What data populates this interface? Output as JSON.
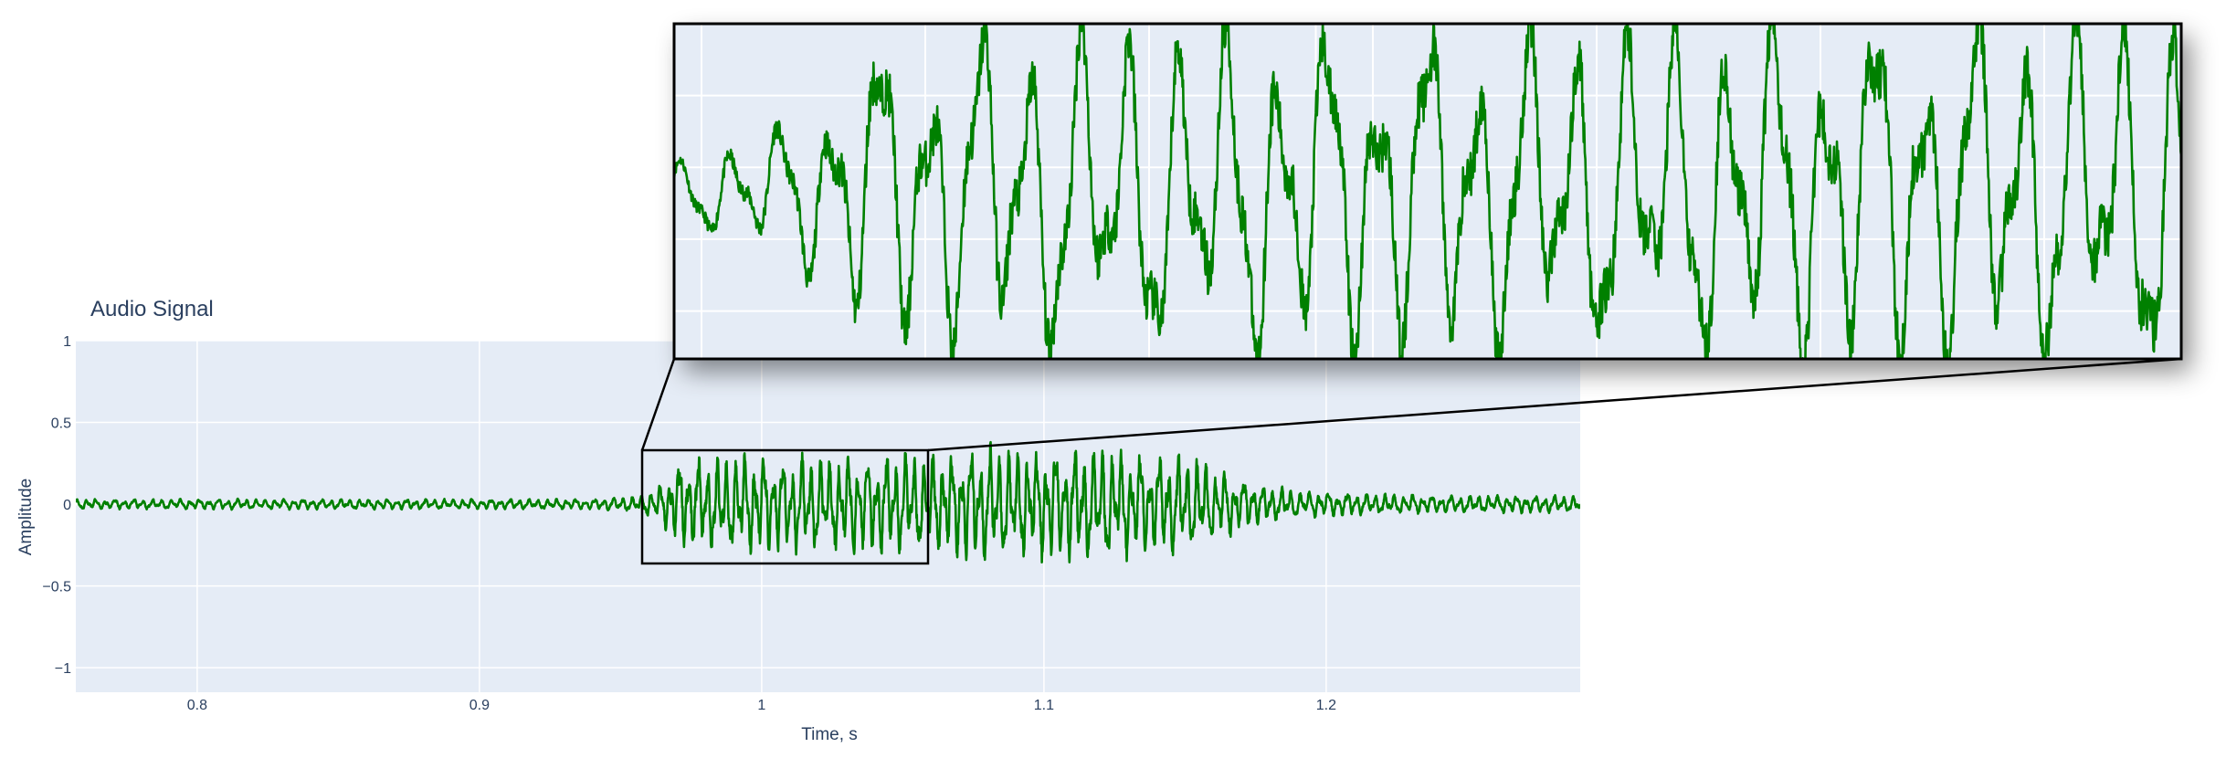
{
  "chart_data": {
    "type": "line",
    "title": "Audio Signal",
    "xlabel": "Time, s",
    "ylabel": "Amplitude",
    "xlim": [
      0.757,
      1.29
    ],
    "ylim": [
      -1.15,
      1.0
    ],
    "x_ticks": [
      0.8,
      0.9,
      1,
      1.1,
      1.2
    ],
    "x_tick_labels": [
      "0.8",
      "0.9",
      "1",
      "1.1",
      "1.2"
    ],
    "y_ticks": [
      1,
      0.5,
      0,
      -0.5,
      -1
    ],
    "y_tick_labels": [
      "1",
      "0.5",
      "0",
      "−0.5",
      "−1"
    ],
    "grid": true,
    "legend": "none",
    "colors": {
      "line": "#008000",
      "plot_bg": "#e5ecf6",
      "grid": "#ffffff",
      "text": "#2a3f5f",
      "frame": "#000000"
    },
    "series": [
      {
        "envelope": [
          [
            0.757,
            0.03
          ],
          [
            0.8,
            0.03
          ],
          [
            0.9,
            0.03
          ],
          [
            0.94,
            0.03
          ],
          [
            0.957,
            0.05
          ],
          [
            0.965,
            0.12
          ],
          [
            0.97,
            0.25
          ],
          [
            0.98,
            0.28
          ],
          [
            1.0,
            0.28
          ],
          [
            1.02,
            0.28
          ],
          [
            1.04,
            0.3
          ],
          [
            1.06,
            0.3
          ],
          [
            1.08,
            0.33
          ],
          [
            1.1,
            0.32
          ],
          [
            1.12,
            0.33
          ],
          [
            1.14,
            0.3
          ],
          [
            1.155,
            0.27
          ],
          [
            1.17,
            0.15
          ],
          [
            1.19,
            0.08
          ],
          [
            1.22,
            0.06
          ],
          [
            1.25,
            0.05
          ],
          [
            1.29,
            0.05
          ]
        ],
        "frequency_hz": 300
      }
    ],
    "zoom_window": {
      "x_range": [
        0.957,
        1.058
      ],
      "y_range": [
        -0.35,
        0.35
      ]
    }
  }
}
